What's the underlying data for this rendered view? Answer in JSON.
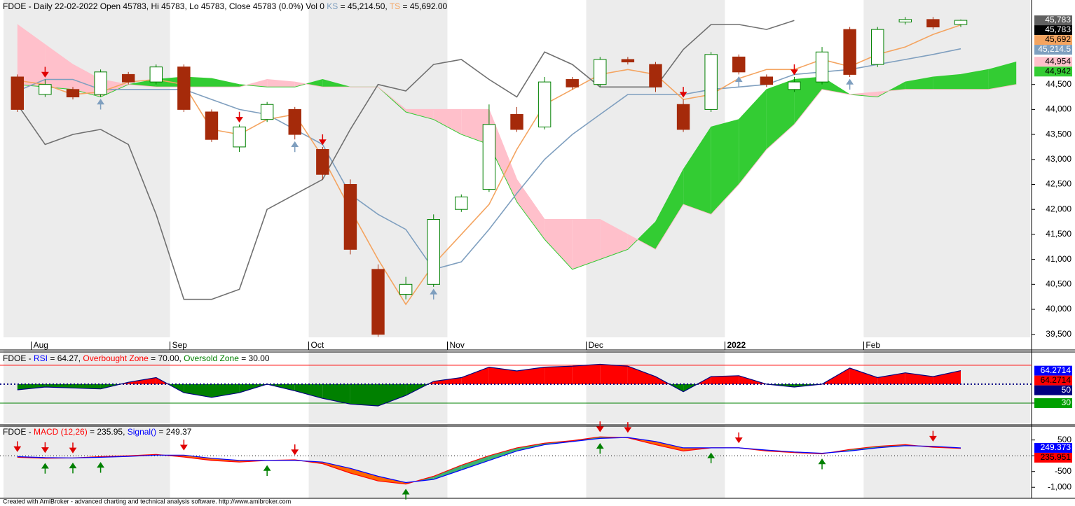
{
  "chart_data": [
    {
      "type": "candlestick",
      "title_parts": [
        {
          "text": "FDOE - Daily 22-02-2022 Open 45783, Hi 45783, Lo 45783, Close 45783 (0.0%) Vol 0 ",
          "color": "#000000"
        },
        {
          "text": "KS",
          "color": "#7f9fbf"
        },
        {
          "text": " = 45,214.50, ",
          "color": "#000000"
        },
        {
          "text": "TS",
          "color": "#f4a460"
        },
        {
          "text": " = 45,692.00",
          "color": "#000000"
        }
      ],
      "categories": [
        null,
        "Aug",
        null,
        null,
        null,
        null,
        "Sep",
        null,
        null,
        null,
        null,
        "Oct",
        null,
        null,
        null,
        null,
        "Nov",
        null,
        null,
        null,
        null,
        "Dec",
        null,
        null,
        null,
        null,
        "2022",
        null,
        null,
        null,
        null,
        "Feb",
        null,
        null,
        null,
        null,
        null
      ],
      "open": [
        44650,
        44300,
        44400,
        44300,
        44700,
        44550,
        44850,
        43950,
        43250,
        43800,
        44000,
        43200,
        42500,
        40800,
        40300,
        40500,
        42000,
        42400,
        43900,
        43650,
        44600,
        44500,
        45000,
        44900,
        44100,
        44000,
        45050,
        44650,
        44400,
        44550,
        45600,
        44900,
        45750,
        45800,
        45700,
        null,
        null
      ],
      "high": [
        44700,
        44600,
        44450,
        44800,
        44750,
        44900,
        44900,
        44000,
        43700,
        44150,
        44050,
        43250,
        42600,
        40900,
        40650,
        41900,
        42300,
        44100,
        44050,
        44650,
        44650,
        45050,
        45050,
        44950,
        44200,
        45150,
        45100,
        44700,
        44650,
        45250,
        45650,
        45650,
        45850,
        45850,
        45800,
        null,
        null
      ],
      "low": [
        43950,
        44250,
        44200,
        44250,
        44500,
        44500,
        43950,
        43350,
        43150,
        43750,
        43400,
        42600,
        41100,
        39450,
        40200,
        40450,
        41950,
        42350,
        43550,
        43600,
        44400,
        44450,
        44900,
        44350,
        43550,
        43950,
        44700,
        44450,
        44350,
        44500,
        44650,
        44850,
        45700,
        45600,
        45650,
        null,
        null
      ],
      "close": [
        44000,
        44500,
        44250,
        44750,
        44550,
        44850,
        44000,
        43400,
        43650,
        44100,
        43500,
        42700,
        41200,
        39500,
        40500,
        41800,
        42250,
        43700,
        43600,
        44550,
        44450,
        45000,
        44950,
        44450,
        43600,
        45100,
        44750,
        44500,
        44550,
        45150,
        44700,
        45600,
        45800,
        45650,
        45783,
        null,
        null
      ],
      "up_color": "#008000",
      "down_color": "#a52a0a",
      "series": [
        {
          "color": "#7f9fbf",
          "values": [
            44370,
            44600,
            44600,
            44400,
            44400,
            44400,
            44400,
            44200,
            44000,
            43900,
            43600,
            43300,
            42300,
            41900,
            41600,
            40800,
            40950,
            41600,
            42320,
            43000,
            43500,
            43900,
            44300,
            44300,
            44300,
            44400,
            44450,
            44500,
            44700,
            44750,
            44800,
            44900,
            45000,
            45100,
            45214.5,
            null,
            null
          ]
        },
        {
          "color": "#f4a460",
          "values": [
            44580,
            44500,
            44300,
            44350,
            44550,
            44600,
            44500,
            43600,
            43500,
            43800,
            43900,
            43050,
            42000,
            41000,
            40100,
            40900,
            41500,
            42100,
            43200,
            44100,
            44400,
            44700,
            44800,
            44700,
            44200,
            44300,
            44620,
            44800,
            44800,
            45000,
            44860,
            45100,
            45250,
            45500,
            45692,
            null,
            null
          ]
        },
        {
          "color": "#707070",
          "values": [
            44100,
            43300,
            43500,
            43600,
            43300,
            41900,
            40200,
            40200,
            40400,
            42000,
            42300,
            42600,
            43600,
            44500,
            44370,
            44900,
            45000,
            44600,
            44250,
            45150,
            44900,
            44450,
            44450,
            44450,
            45200,
            45700,
            45700,
            45600,
            45780,
            null,
            null,
            null,
            null,
            null,
            null,
            null,
            null
          ]
        }
      ],
      "cloud": {
        "span_a": [
          44500,
          44450,
          44400,
          44250,
          44500,
          44600,
          44650,
          44620,
          44500,
          44450,
          44450,
          44600,
          44450,
          44450,
          43950,
          43800,
          43500,
          43300,
          42150,
          41400,
          40800,
          41000,
          41200,
          41750,
          42800,
          43650,
          43800,
          44400,
          44600,
          44650,
          44300,
          44250,
          44550,
          44650,
          44700,
          44800,
          44950
        ],
        "span_b": [
          45700,
          45300,
          44900,
          44600,
          44500,
          44450,
          44450,
          44450,
          44450,
          44600,
          44550,
          44450,
          44450,
          44450,
          44000,
          44000,
          44000,
          44000,
          42600,
          41800,
          41800,
          41800,
          41500,
          41200,
          42100,
          41900,
          42500,
          43200,
          43700,
          44400,
          44300,
          44350,
          44400,
          44400,
          44400,
          44400,
          44500
        ],
        "up_color": "#33cc33",
        "down_color": "#ffc0cb"
      },
      "sell_signals": [
        1,
        8,
        11,
        24,
        28
      ],
      "sell_color": "#e00000",
      "buy_signals": [
        3,
        10,
        15,
        26,
        30
      ],
      "buy_color": "#7f9fbf",
      "ylim": [
        39440,
        46120
      ],
      "yticks": [
        {
          "value": 39500,
          "label": "39,500"
        },
        {
          "value": 40000,
          "label": "40,000"
        },
        {
          "value": 40500,
          "label": "40,500"
        },
        {
          "value": 41000,
          "label": "41,000"
        },
        {
          "value": 41500,
          "label": "41,500"
        },
        {
          "value": 42000,
          "label": "42,000"
        },
        {
          "value": 42500,
          "label": "42,500"
        },
        {
          "value": 43000,
          "label": "43,000"
        },
        {
          "value": 43500,
          "label": "43,500"
        },
        {
          "value": 44000,
          "label": "44,000"
        },
        {
          "value": 44500,
          "label": "44,500"
        }
      ],
      "markers": [
        {
          "value": 45783,
          "label": "45,783",
          "color": "#606060",
          "text_color": "#ffffff"
        },
        {
          "value": 45783,
          "label": "45,783",
          "color": "#000000",
          "text_color": "#ffffff"
        },
        {
          "value": 45692,
          "label": "45,692",
          "color": "#f4a460",
          "text_color": "#000000"
        },
        {
          "value": 45214.5,
          "label": "45,214.5",
          "color": "#7f9fbf",
          "text_color": "#ffffff"
        },
        {
          "value": 44954,
          "label": "44,954",
          "color": "#ffc0cb",
          "text_color": "#000000"
        },
        {
          "value": 44942,
          "label": "44,942",
          "color": "#33cc33",
          "text_color": "#000000"
        }
      ]
    },
    {
      "type": "area",
      "title_parts": [
        {
          "text": "FDOE - ",
          "color": "#000000"
        },
        {
          "text": "RSI",
          "color": "#0000ff"
        },
        {
          "text": " = 64.27, ",
          "color": "#000000"
        },
        {
          "text": "Overbought Zone",
          "color": "#ff0000"
        },
        {
          "text": " = 70.00, ",
          "color": "#000000"
        },
        {
          "text": "Oversold Zone",
          "color": "#008000"
        },
        {
          "text": " = 30.00",
          "color": "#000000"
        }
      ],
      "values": [
        44,
        47,
        46,
        45,
        52,
        57,
        41,
        36,
        41,
        50,
        43,
        35,
        29,
        27,
        38,
        53,
        57,
        68,
        64,
        68,
        69,
        71,
        69,
        58,
        42,
        58,
        59,
        50,
        47,
        50,
        67,
        57,
        62,
        58,
        64.27,
        null,
        null
      ],
      "line_color": "#000080",
      "up_color": "#ff0000",
      "down_color": "#008000",
      "midline": 50,
      "levels": [
        {
          "value": 70,
          "color": "#ff0000"
        },
        {
          "value": 30,
          "color": "#008000"
        }
      ],
      "ylim": [
        8.5,
        82.5
      ],
      "yticks": [
        30
      ],
      "markers": [
        {
          "value": 64.2714,
          "label": "64.2714",
          "color": "#0000ff",
          "text_color": "#ffffff"
        },
        {
          "value": 64.2714,
          "label": "64.2714",
          "color": "#ff0000",
          "text_color": "#000000"
        },
        {
          "value": 50,
          "label": "50",
          "color": "#000080",
          "text_color": "#ffffff"
        },
        {
          "value": 30,
          "label": "30",
          "color": "#00a000",
          "text_color": "#ffffff"
        }
      ]
    },
    {
      "type": "line",
      "title_parts": [
        {
          "text": "FDOE - ",
          "color": "#000000"
        },
        {
          "text": "MACD (12,26)",
          "color": "#ff0000"
        },
        {
          "text": " = 235.95, ",
          "color": "#000000"
        },
        {
          "text": "Signal()",
          "color": "#0000ff"
        },
        {
          "text": " = 249.37",
          "color": "#000000"
        }
      ],
      "series": [
        {
          "color": "#ff0000",
          "values": [
            -50,
            -80,
            -70,
            -30,
            0,
            40,
            -40,
            -150,
            -200,
            -150,
            -130,
            -250,
            -550,
            -800,
            -900,
            -650,
            -300,
            0,
            250,
            400,
            480,
            600,
            570,
            350,
            150,
            250,
            250,
            150,
            100,
            60,
            200,
            300,
            350,
            270,
            235.95,
            null,
            null
          ]
        },
        {
          "color": "#0000ff",
          "values": [
            -30,
            -60,
            -70,
            -50,
            -20,
            20,
            20,
            -80,
            -150,
            -150,
            -150,
            -200,
            -400,
            -650,
            -850,
            -750,
            -450,
            -150,
            150,
            350,
            450,
            550,
            580,
            450,
            250,
            250,
            250,
            180,
            120,
            80,
            150,
            250,
            320,
            300,
            249.37,
            null,
            null
          ]
        }
      ],
      "up_color": "#3cb371",
      "down_color": "#ff6600",
      "sell_signals": [
        0,
        1,
        2,
        6,
        10,
        21,
        22,
        26,
        33
      ],
      "sell_color": "#e00000",
      "buy_signals": [
        1,
        2,
        3,
        9,
        14,
        21,
        25,
        29
      ],
      "buy_color": "#008000",
      "zero_line": true,
      "ylim": [
        -1350,
        870
      ],
      "yticks": [
        500,
        0,
        -500,
        {
          "value": -1000,
          "label": "-1,000"
        }
      ],
      "markers": [
        {
          "value": 249.373,
          "label": "249.373",
          "color": "#0000ff",
          "text_color": "#ffffff"
        },
        {
          "value": 235.951,
          "label": "235.951",
          "color": "#ff0000",
          "text_color": "#000000"
        }
      ]
    }
  ],
  "footer": "Created with AmiBroker - advanced charting and technical analysis software. http://www.amibroker.com"
}
